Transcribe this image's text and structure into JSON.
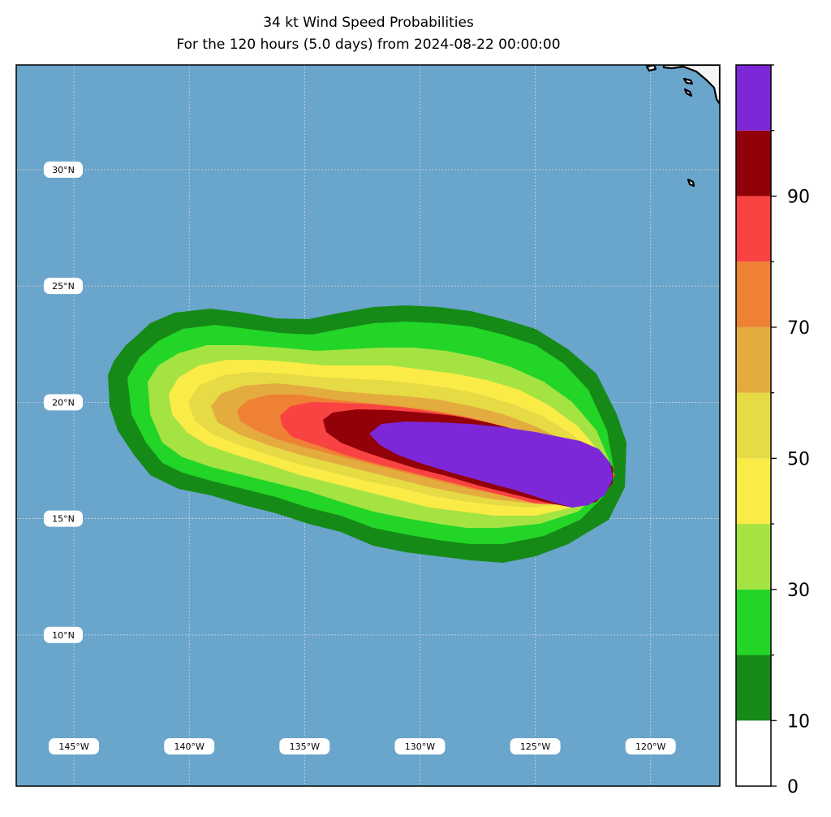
{
  "title": {
    "line1": "34 kt Wind Speed Probabilities",
    "line2": "For the 120 hours (5.0 days) from 2024-08-22 00:00:00"
  },
  "map": {
    "ocean_color": "#6aa5cb",
    "land_color": "#f5f5f5",
    "lon_range": [
      -147.5,
      -117
    ],
    "lat_range": [
      3.5,
      34.5
    ],
    "latitude_labels": [
      {
        "lat": 30,
        "label": "30°N"
      },
      {
        "lat": 25,
        "label": "25°N"
      },
      {
        "lat": 20,
        "label": "20°N"
      },
      {
        "lat": 15,
        "label": "15°N"
      },
      {
        "lat": 10,
        "label": "10°N"
      }
    ],
    "longitude_labels": [
      {
        "lon": -145,
        "label": "145°W"
      },
      {
        "lon": -140,
        "label": "140°W"
      },
      {
        "lon": -135,
        "label": "135°W"
      },
      {
        "lon": -130,
        "label": "130°W"
      },
      {
        "lon": -125,
        "label": "125°W"
      },
      {
        "lon": -120,
        "label": "120°W"
      }
    ]
  },
  "colorbar": {
    "ticks": [
      {
        "value": 0,
        "label": "0"
      },
      {
        "value": 10,
        "label": "10"
      },
      {
        "value": 30,
        "label": "30"
      },
      {
        "value": 50,
        "label": "50"
      },
      {
        "value": 70,
        "label": "70"
      },
      {
        "value": 90,
        "label": "90"
      }
    ],
    "bins": [
      {
        "from": 0,
        "to": 10,
        "color": "#ffffff"
      },
      {
        "from": 10,
        "to": 20,
        "color": "#168a17"
      },
      {
        "from": 20,
        "to": 30,
        "color": "#22d527"
      },
      {
        "from": 30,
        "to": 40,
        "color": "#a5e343"
      },
      {
        "from": 40,
        "to": 50,
        "color": "#fbeb46"
      },
      {
        "from": 50,
        "to": 60,
        "color": "#e6da45"
      },
      {
        "from": 60,
        "to": 70,
        "color": "#e4ab3e"
      },
      {
        "from": 70,
        "to": 80,
        "color": "#ee8133"
      },
      {
        "from": 80,
        "to": 90,
        "color": "#f94242"
      },
      {
        "from": 90,
        "to": 100,
        "color": "#920108"
      },
      {
        "from": 100,
        "to": 110,
        "color": "#7c28d8"
      }
    ]
  },
  "probability_swath": {
    "head_center": {
      "lon": -124.6,
      "lat": 17.3
    },
    "tail_center": {
      "lon": -136.5,
      "lat": 19.4
    },
    "contour_colors": [
      "#168a17",
      "#22d527",
      "#a5e343",
      "#fbeb46",
      "#e6da45",
      "#e4ab3e",
      "#ee8133",
      "#f94242",
      "#920108",
      "#7c28d8"
    ]
  }
}
